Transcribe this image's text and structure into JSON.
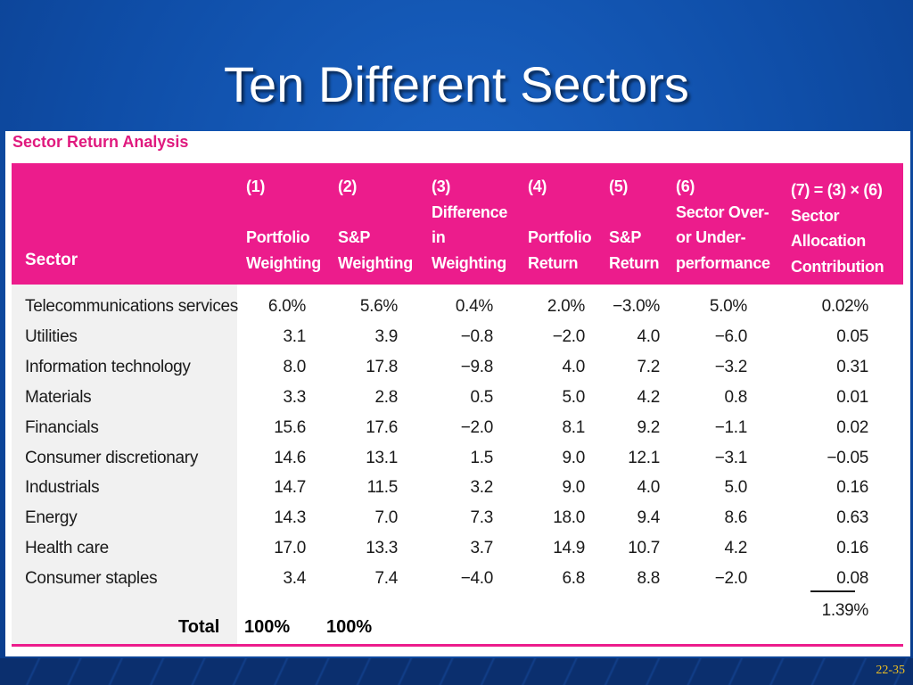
{
  "slide": {
    "title": "Ten Different Sectors",
    "number": "22-35"
  },
  "table": {
    "caption": "Sector Return Analysis",
    "sector_header": "Sector",
    "columns": [
      {
        "num": "(1)",
        "lines": [
          "",
          "Portfolio",
          "Weighting"
        ]
      },
      {
        "num": "(2)",
        "lines": [
          "",
          "S&P",
          "Weighting"
        ]
      },
      {
        "num": "(3)",
        "lines": [
          "Difference",
          "in",
          "Weighting"
        ]
      },
      {
        "num": "(4)",
        "lines": [
          "",
          "Portfolio",
          "Return"
        ]
      },
      {
        "num": "(5)",
        "lines": [
          "",
          "S&P",
          "Return"
        ]
      },
      {
        "num": "(6)",
        "lines": [
          "Sector Over-",
          "or Under-",
          "performance"
        ]
      },
      {
        "num": "(7) = (3) × (6)",
        "lines": [
          "Sector",
          "Allocation",
          "Contribution"
        ]
      }
    ],
    "rows": [
      {
        "sector": "Telecommunications services",
        "values": [
          "6.0%",
          "5.6%",
          "0.4%",
          "2.0%",
          "−3.0%",
          "5.0%",
          "0.02%"
        ]
      },
      {
        "sector": "Utilities",
        "values": [
          "3.1",
          "3.9",
          "−0.8",
          "−2.0",
          "4.0",
          "−6.0",
          "0.05"
        ]
      },
      {
        "sector": "Information technology",
        "values": [
          "8.0",
          "17.8",
          "−9.8",
          "4.0",
          "7.2",
          "−3.2",
          "0.31"
        ]
      },
      {
        "sector": "Materials",
        "values": [
          "3.3",
          "2.8",
          "0.5",
          "5.0",
          "4.2",
          "0.8",
          "0.01"
        ]
      },
      {
        "sector": "Financials",
        "values": [
          "15.6",
          "17.6",
          "−2.0",
          "8.1",
          "9.2",
          "−1.1",
          "0.02"
        ]
      },
      {
        "sector": "Consumer discretionary",
        "values": [
          "14.6",
          "13.1",
          "1.5",
          "9.0",
          "12.1",
          "−3.1",
          "−0.05"
        ]
      },
      {
        "sector": "Industrials",
        "values": [
          "14.7",
          "11.5",
          "3.2",
          "9.0",
          "4.0",
          "5.0",
          "0.16"
        ]
      },
      {
        "sector": "Energy",
        "values": [
          "14.3",
          "7.0",
          "7.3",
          "18.0",
          "9.4",
          "8.6",
          "0.63"
        ]
      },
      {
        "sector": "Health care",
        "values": [
          "17.0",
          "13.3",
          "3.7",
          "14.9",
          "10.7",
          "4.2",
          "0.16"
        ]
      },
      {
        "sector": "Consumer staples",
        "values": [
          "3.4",
          "7.4",
          "−4.0",
          "6.8",
          "8.8",
          "−2.0",
          "0.08"
        ]
      }
    ],
    "total": {
      "label": "Total",
      "portfolio_weighting": "100%",
      "sp_weighting": "100%",
      "contribution": "1.39%"
    }
  }
}
